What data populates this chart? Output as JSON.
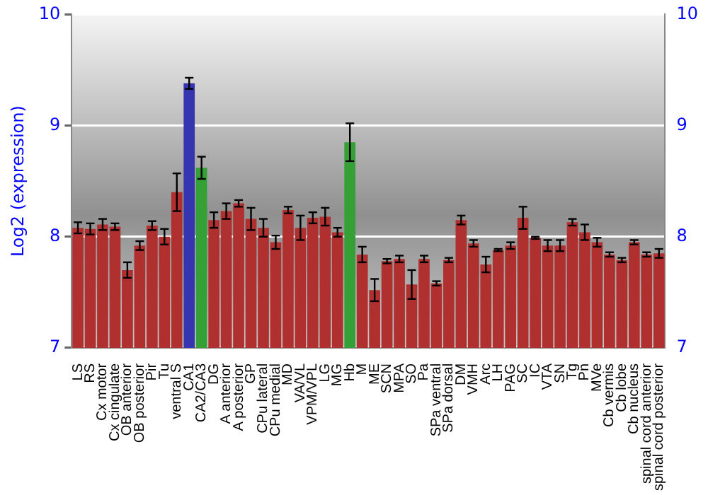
{
  "chart_data": {
    "type": "bar",
    "ylabel": "Log2 (expression)",
    "categories": [
      "LS",
      "RS",
      "Cx motor",
      "Cx cingulate",
      "OB anterior",
      "OB posterior",
      "Pir",
      "Tu",
      "ventral S",
      "CA1",
      "CA2/CA3",
      "DG",
      "A anterior",
      "A posterior",
      "GP",
      "CPu lateral",
      "CPu medial",
      "MD",
      "VA/VL",
      "VPM/VPL",
      "LG",
      "MG",
      "Hb",
      "M",
      "ME",
      "SCN",
      "MPA",
      "SO",
      "Pa",
      "SPa ventral",
      "SPa dorsal",
      "DM",
      "VMH",
      "Arc",
      "LH",
      "PAG",
      "SC",
      "IC",
      "VTA",
      "SN",
      "Tg",
      "Pn",
      "MVe",
      "Cb vermis",
      "Cb lobe",
      "Cb nucleus",
      "spinal cord anterior",
      "spinal cord posterior"
    ],
    "values": [
      8.08,
      8.07,
      8.11,
      8.09,
      7.7,
      7.92,
      8.1,
      8.0,
      8.4,
      9.38,
      8.62,
      8.15,
      8.23,
      8.3,
      8.16,
      8.08,
      7.95,
      8.24,
      8.08,
      8.17,
      8.18,
      8.04,
      8.85,
      7.84,
      7.52,
      7.78,
      7.8,
      7.57,
      7.8,
      7.58,
      7.79,
      8.15,
      7.94,
      7.75,
      7.88,
      7.92,
      8.17,
      7.99,
      7.92,
      7.92,
      8.13,
      8.04,
      7.95,
      7.84,
      7.79,
      7.95,
      7.84,
      7.85
    ],
    "errors": [
      0.05,
      0.05,
      0.05,
      0.03,
      0.07,
      0.04,
      0.04,
      0.07,
      0.17,
      0.05,
      0.1,
      0.07,
      0.07,
      0.03,
      0.1,
      0.08,
      0.06,
      0.03,
      0.11,
      0.05,
      0.08,
      0.04,
      0.17,
      0.07,
      0.1,
      0.02,
      0.03,
      0.13,
      0.03,
      0.02,
      0.02,
      0.04,
      0.03,
      0.07,
      0.01,
      0.03,
      0.1,
      0.01,
      0.05,
      0.05,
      0.03,
      0.07,
      0.04,
      0.02,
      0.02,
      0.02,
      0.02,
      0.04
    ],
    "colors": [
      "#b03030",
      "#b03030",
      "#b03030",
      "#b03030",
      "#b03030",
      "#b03030",
      "#b03030",
      "#b03030",
      "#b03030",
      "#3535b0",
      "#35a035",
      "#b03030",
      "#b03030",
      "#b03030",
      "#b03030",
      "#b03030",
      "#b03030",
      "#b03030",
      "#b03030",
      "#b03030",
      "#b03030",
      "#b03030",
      "#35a035",
      "#b03030",
      "#b03030",
      "#b03030",
      "#b03030",
      "#b03030",
      "#b03030",
      "#b03030",
      "#b03030",
      "#b03030",
      "#b03030",
      "#b03030",
      "#b03030",
      "#b03030",
      "#b03030",
      "#b03030",
      "#b03030",
      "#b03030",
      "#b03030",
      "#b03030",
      "#b03030",
      "#b03030",
      "#b03030",
      "#b03030",
      "#b03030",
      "#b03030"
    ],
    "ylim": [
      7,
      10
    ],
    "yticks": [
      7,
      8,
      9,
      10
    ],
    "y2lim": [
      7,
      10
    ],
    "y2ticks": [
      7,
      8,
      9,
      10
    ],
    "grid": "y"
  }
}
